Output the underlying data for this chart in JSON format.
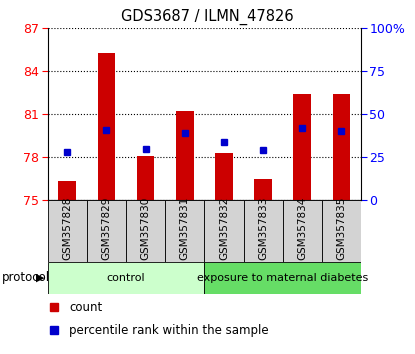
{
  "title": "GDS3687 / ILMN_47826",
  "samples": [
    "GSM357828",
    "GSM357829",
    "GSM357830",
    "GSM357831",
    "GSM357832",
    "GSM357833",
    "GSM357834",
    "GSM357835"
  ],
  "bar_values": [
    76.3,
    85.3,
    78.1,
    81.2,
    78.3,
    76.5,
    82.4,
    82.4
  ],
  "bar_bottom": 75,
  "percentile_values": [
    28,
    41,
    30,
    39,
    34,
    29,
    42,
    40
  ],
  "ylim_left": [
    75,
    87
  ],
  "ylim_right": [
    0,
    100
  ],
  "yticks_left": [
    75,
    78,
    81,
    84,
    87
  ],
  "yticks_right": [
    0,
    25,
    50,
    75,
    100
  ],
  "yticklabels_right": [
    "0",
    "25",
    "50",
    "75",
    "100%"
  ],
  "bar_color": "#cc0000",
  "percentile_color": "#0000cc",
  "groups": [
    {
      "label": "control",
      "start": 0,
      "end": 4,
      "color": "#ccffcc"
    },
    {
      "label": "exposure to maternal diabetes",
      "start": 4,
      "end": 8,
      "color": "#66dd66"
    }
  ],
  "protocol_label": "protocol",
  "legend_count": "count",
  "legend_pct": "percentile rank within the sample",
  "xlim": [
    -0.5,
    7.5
  ]
}
